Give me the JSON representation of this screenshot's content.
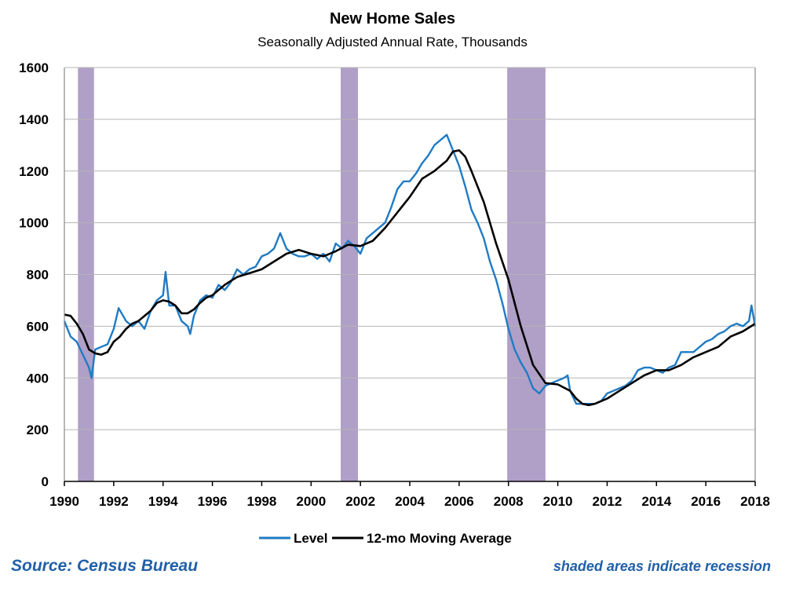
{
  "chart_data": {
    "type": "line",
    "title": "New Home Sales",
    "subtitle": "Seasonally Adjusted Annual Rate, Thousands",
    "xlim": [
      1990,
      2018
    ],
    "ylim": [
      0,
      1600
    ],
    "y_ticks": [
      0,
      200,
      400,
      600,
      800,
      1000,
      1200,
      1400,
      1600
    ],
    "x_ticks": [
      1990,
      1992,
      1994,
      1996,
      1998,
      2000,
      2002,
      2004,
      2006,
      2008,
      2010,
      2012,
      2014,
      2016,
      2018
    ],
    "grid": "horizontal",
    "legend_position": "bottom",
    "recessions": [
      [
        1990.55,
        1991.2
      ],
      [
        2001.2,
        2001.9
      ],
      [
        2007.95,
        2009.5
      ]
    ],
    "recession_color": "#b09fc7",
    "series": [
      {
        "name": "Level",
        "color": "#1f7bc4",
        "x": [
          1990.0,
          1990.25,
          1990.5,
          1990.75,
          1991.0,
          1991.1,
          1991.25,
          1991.5,
          1991.75,
          1992.0,
          1992.2,
          1992.5,
          1992.75,
          1993.0,
          1993.25,
          1993.5,
          1993.75,
          1994.0,
          1994.1,
          1994.25,
          1994.5,
          1994.75,
          1995.0,
          1995.1,
          1995.25,
          1995.5,
          1995.75,
          1996.0,
          1996.25,
          1996.5,
          1996.75,
          1997.0,
          1997.25,
          1997.5,
          1997.75,
          1998.0,
          1998.25,
          1998.5,
          1998.75,
          1999.0,
          1999.25,
          1999.5,
          1999.75,
          2000.0,
          2000.25,
          2000.5,
          2000.75,
          2001.0,
          2001.25,
          2001.5,
          2001.75,
          2002.0,
          2002.25,
          2002.5,
          2002.75,
          2003.0,
          2003.25,
          2003.5,
          2003.75,
          2004.0,
          2004.25,
          2004.5,
          2004.75,
          2005.0,
          2005.25,
          2005.5,
          2005.75,
          2006.0,
          2006.25,
          2006.5,
          2006.75,
          2007.0,
          2007.25,
          2007.5,
          2007.75,
          2008.0,
          2008.25,
          2008.5,
          2008.75,
          2009.0,
          2009.25,
          2009.5,
          2009.75,
          2010.0,
          2010.25,
          2010.4,
          2010.5,
          2010.75,
          2011.0,
          2011.25,
          2011.5,
          2011.75,
          2012.0,
          2012.25,
          2012.5,
          2012.75,
          2013.0,
          2013.25,
          2013.5,
          2013.75,
          2014.0,
          2014.25,
          2014.5,
          2014.75,
          2015.0,
          2015.25,
          2015.5,
          2015.75,
          2016.0,
          2016.25,
          2016.5,
          2016.75,
          2017.0,
          2017.25,
          2017.5,
          2017.75,
          2017.85,
          2018.0
        ],
        "values": [
          620,
          560,
          540,
          490,
          440,
          400,
          510,
          520,
          530,
          590,
          670,
          620,
          600,
          620,
          590,
          660,
          700,
          720,
          810,
          680,
          680,
          620,
          600,
          570,
          640,
          700,
          720,
          710,
          760,
          740,
          770,
          820,
          800,
          820,
          830,
          870,
          880,
          900,
          960,
          900,
          880,
          870,
          870,
          880,
          860,
          880,
          850,
          920,
          900,
          930,
          910,
          880,
          940,
          960,
          980,
          1000,
          1060,
          1130,
          1160,
          1160,
          1190,
          1230,
          1260,
          1300,
          1320,
          1340,
          1280,
          1220,
          1140,
          1050,
          1000,
          940,
          850,
          780,
          690,
          590,
          510,
          460,
          420,
          360,
          340,
          370,
          380,
          390,
          400,
          410,
          350,
          300,
          300,
          300,
          300,
          310,
          340,
          350,
          360,
          370,
          390,
          430,
          440,
          440,
          430,
          420,
          440,
          450,
          500,
          500,
          500,
          520,
          540,
          550,
          570,
          580,
          600,
          610,
          600,
          620,
          680,
          600
        ]
      },
      {
        "name": "12-mo Moving Average",
        "color": "#000000",
        "x": [
          1990.0,
          1990.25,
          1990.5,
          1990.75,
          1991.0,
          1991.25,
          1991.5,
          1991.75,
          1992.0,
          1992.25,
          1992.5,
          1992.75,
          1993.0,
          1993.25,
          1993.5,
          1993.75,
          1994.0,
          1994.25,
          1994.5,
          1994.75,
          1995.0,
          1995.25,
          1995.5,
          1995.75,
          1996.0,
          1996.25,
          1996.5,
          1996.75,
          1997.0,
          1997.5,
          1998.0,
          1998.5,
          1999.0,
          1999.5,
          2000.0,
          2000.5,
          2001.0,
          2001.5,
          2002.0,
          2002.5,
          2003.0,
          2003.5,
          2004.0,
          2004.5,
          2005.0,
          2005.5,
          2005.75,
          2006.0,
          2006.25,
          2006.5,
          2007.0,
          2007.5,
          2008.0,
          2008.5,
          2009.0,
          2009.5,
          2010.0,
          2010.5,
          2010.75,
          2011.0,
          2011.25,
          2011.5,
          2012.0,
          2012.5,
          2013.0,
          2013.5,
          2014.0,
          2014.5,
          2015.0,
          2015.5,
          2016.0,
          2016.5,
          2017.0,
          2017.5,
          2018.0
        ],
        "values": [
          645,
          640,
          610,
          570,
          510,
          495,
          490,
          500,
          540,
          560,
          590,
          610,
          620,
          640,
          660,
          690,
          700,
          695,
          680,
          650,
          650,
          665,
          690,
          710,
          720,
          740,
          760,
          775,
          790,
          805,
          820,
          850,
          880,
          895,
          880,
          870,
          890,
          915,
          910,
          930,
          980,
          1040,
          1100,
          1170,
          1200,
          1240,
          1275,
          1280,
          1255,
          1200,
          1080,
          920,
          780,
          600,
          450,
          380,
          375,
          350,
          320,
          300,
          295,
          300,
          320,
          350,
          380,
          410,
          430,
          430,
          450,
          480,
          500,
          520,
          560,
          580,
          610
        ]
      }
    ],
    "legend": [
      "Level",
      "12-mo Moving Average"
    ]
  },
  "footer": {
    "source": "Source: Census Bureau",
    "note": "shaded areas indicate recession"
  }
}
